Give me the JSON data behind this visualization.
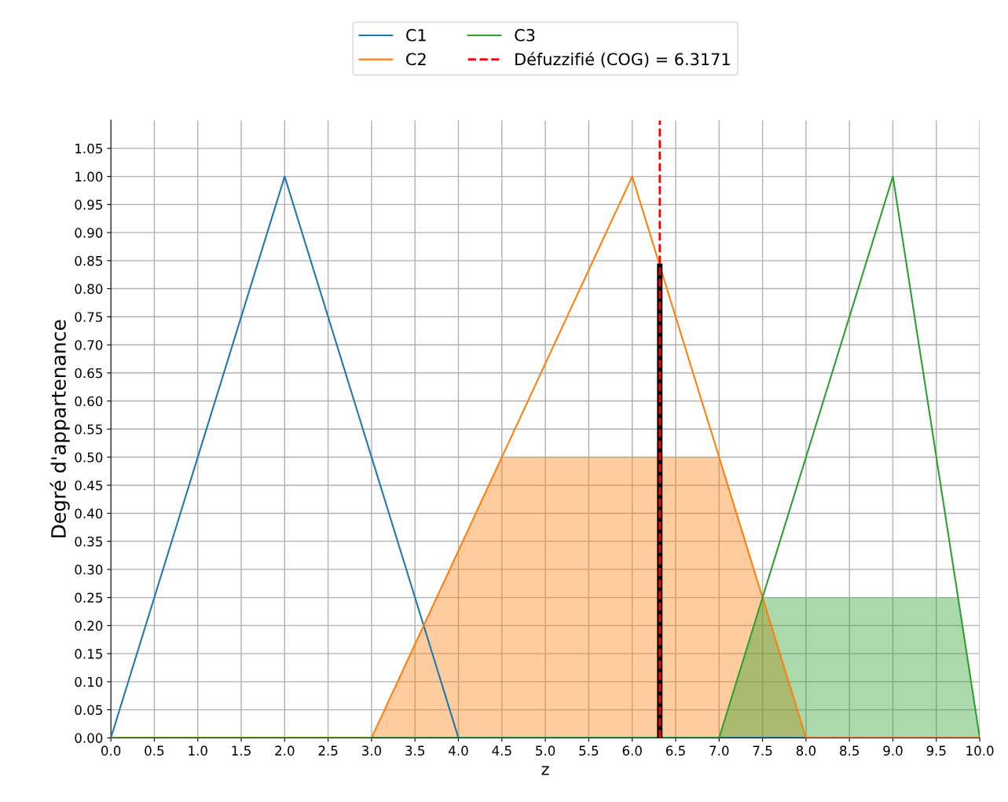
{
  "chart_data": {
    "type": "line",
    "xlabel": "z",
    "ylabel": "Degré d'appartenance",
    "series": [
      {
        "type": "area",
        "color": "#ff7f0e",
        "x": [
          3,
          4.5,
          7,
          8
        ],
        "values": [
          0,
          0.5,
          0.5,
          0
        ]
      },
      {
        "type": "area",
        "color": "#2ca02c",
        "x": [
          7,
          7.5,
          9.75,
          10
        ],
        "values": [
          0,
          0.25,
          0.25,
          0
        ]
      },
      {
        "name": "C1",
        "color": "#1f77b4",
        "x": [
          0,
          2,
          4,
          10
        ],
        "values": [
          0,
          1,
          0,
          0
        ]
      },
      {
        "name": "C2",
        "color": "#ff7f0e",
        "x": [
          0,
          3,
          6,
          8,
          10
        ],
        "values": [
          0,
          0,
          1,
          0,
          0
        ]
      },
      {
        "name": "C3",
        "color": "#2ca02c",
        "x": [
          0,
          7,
          9,
          10
        ],
        "values": [
          0,
          0,
          1,
          0
        ]
      },
      {
        "type": "line",
        "color": "#000000",
        "x": [
          6.3171,
          6.3171
        ],
        "values": [
          0,
          0.84
        ]
      }
    ],
    "ref_lines": [
      {
        "axis": "x",
        "value": 6.3171,
        "label": "Défuzzifié (COG) = 6.3171",
        "color": "#ff0000",
        "line_style": "dashed"
      }
    ],
    "xlim": [
      0,
      10
    ],
    "ylim": [
      0,
      1.1
    ],
    "xticks": [
      {
        "value": 0,
        "label": "0.0"
      },
      {
        "value": 0.5,
        "label": "0.5"
      },
      {
        "value": 1,
        "label": "1.0"
      },
      {
        "value": 1.5,
        "label": "1.5"
      },
      {
        "value": 2,
        "label": "2.0"
      },
      {
        "value": 2.5,
        "label": "2.5"
      },
      {
        "value": 3,
        "label": "3.0"
      },
      {
        "value": 3.5,
        "label": "3.5"
      },
      {
        "value": 4,
        "label": "4.0"
      },
      {
        "value": 4.5,
        "label": "4.5"
      },
      {
        "value": 5,
        "label": "5.0"
      },
      {
        "value": 5.5,
        "label": "5.5"
      },
      {
        "value": 6,
        "label": "6.0"
      },
      {
        "value": 6.5,
        "label": "6.5"
      },
      {
        "value": 7,
        "label": "7.0"
      },
      {
        "value": 7.5,
        "label": "7.5"
      },
      {
        "value": 8,
        "label": "8.0"
      },
      {
        "value": 8.5,
        "label": "8.5"
      },
      {
        "value": 9,
        "label": "9.0"
      },
      {
        "value": 9.5,
        "label": "9.5"
      },
      {
        "value": 10,
        "label": "10.0"
      }
    ],
    "yticks": [
      {
        "value": 0,
        "label": "0.00"
      },
      {
        "value": 0.05,
        "label": "0.05"
      },
      {
        "value": 0.1,
        "label": "0.10"
      },
      {
        "value": 0.15,
        "label": "0.15"
      },
      {
        "value": 0.2,
        "label": "0.20"
      },
      {
        "value": 0.25,
        "label": "0.25"
      },
      {
        "value": 0.3,
        "label": "0.30"
      },
      {
        "value": 0.35,
        "label": "0.35"
      },
      {
        "value": 0.4,
        "label": "0.40"
      },
      {
        "value": 0.45,
        "label": "0.45"
      },
      {
        "value": 0.5,
        "label": "0.50"
      },
      {
        "value": 0.55,
        "label": "0.55"
      },
      {
        "value": 0.6,
        "label": "0.60"
      },
      {
        "value": 0.65,
        "label": "0.65"
      },
      {
        "value": 0.7,
        "label": "0.70"
      },
      {
        "value": 0.75,
        "label": "0.75"
      },
      {
        "value": 0.8,
        "label": "0.80"
      },
      {
        "value": 0.85,
        "label": "0.85"
      },
      {
        "value": 0.9,
        "label": "0.90"
      },
      {
        "value": 0.95,
        "label": "0.95"
      },
      {
        "value": 1,
        "label": "1.00"
      },
      {
        "value": 1.05,
        "label": "1.05"
      }
    ],
    "grid": true,
    "legend": "top"
  }
}
